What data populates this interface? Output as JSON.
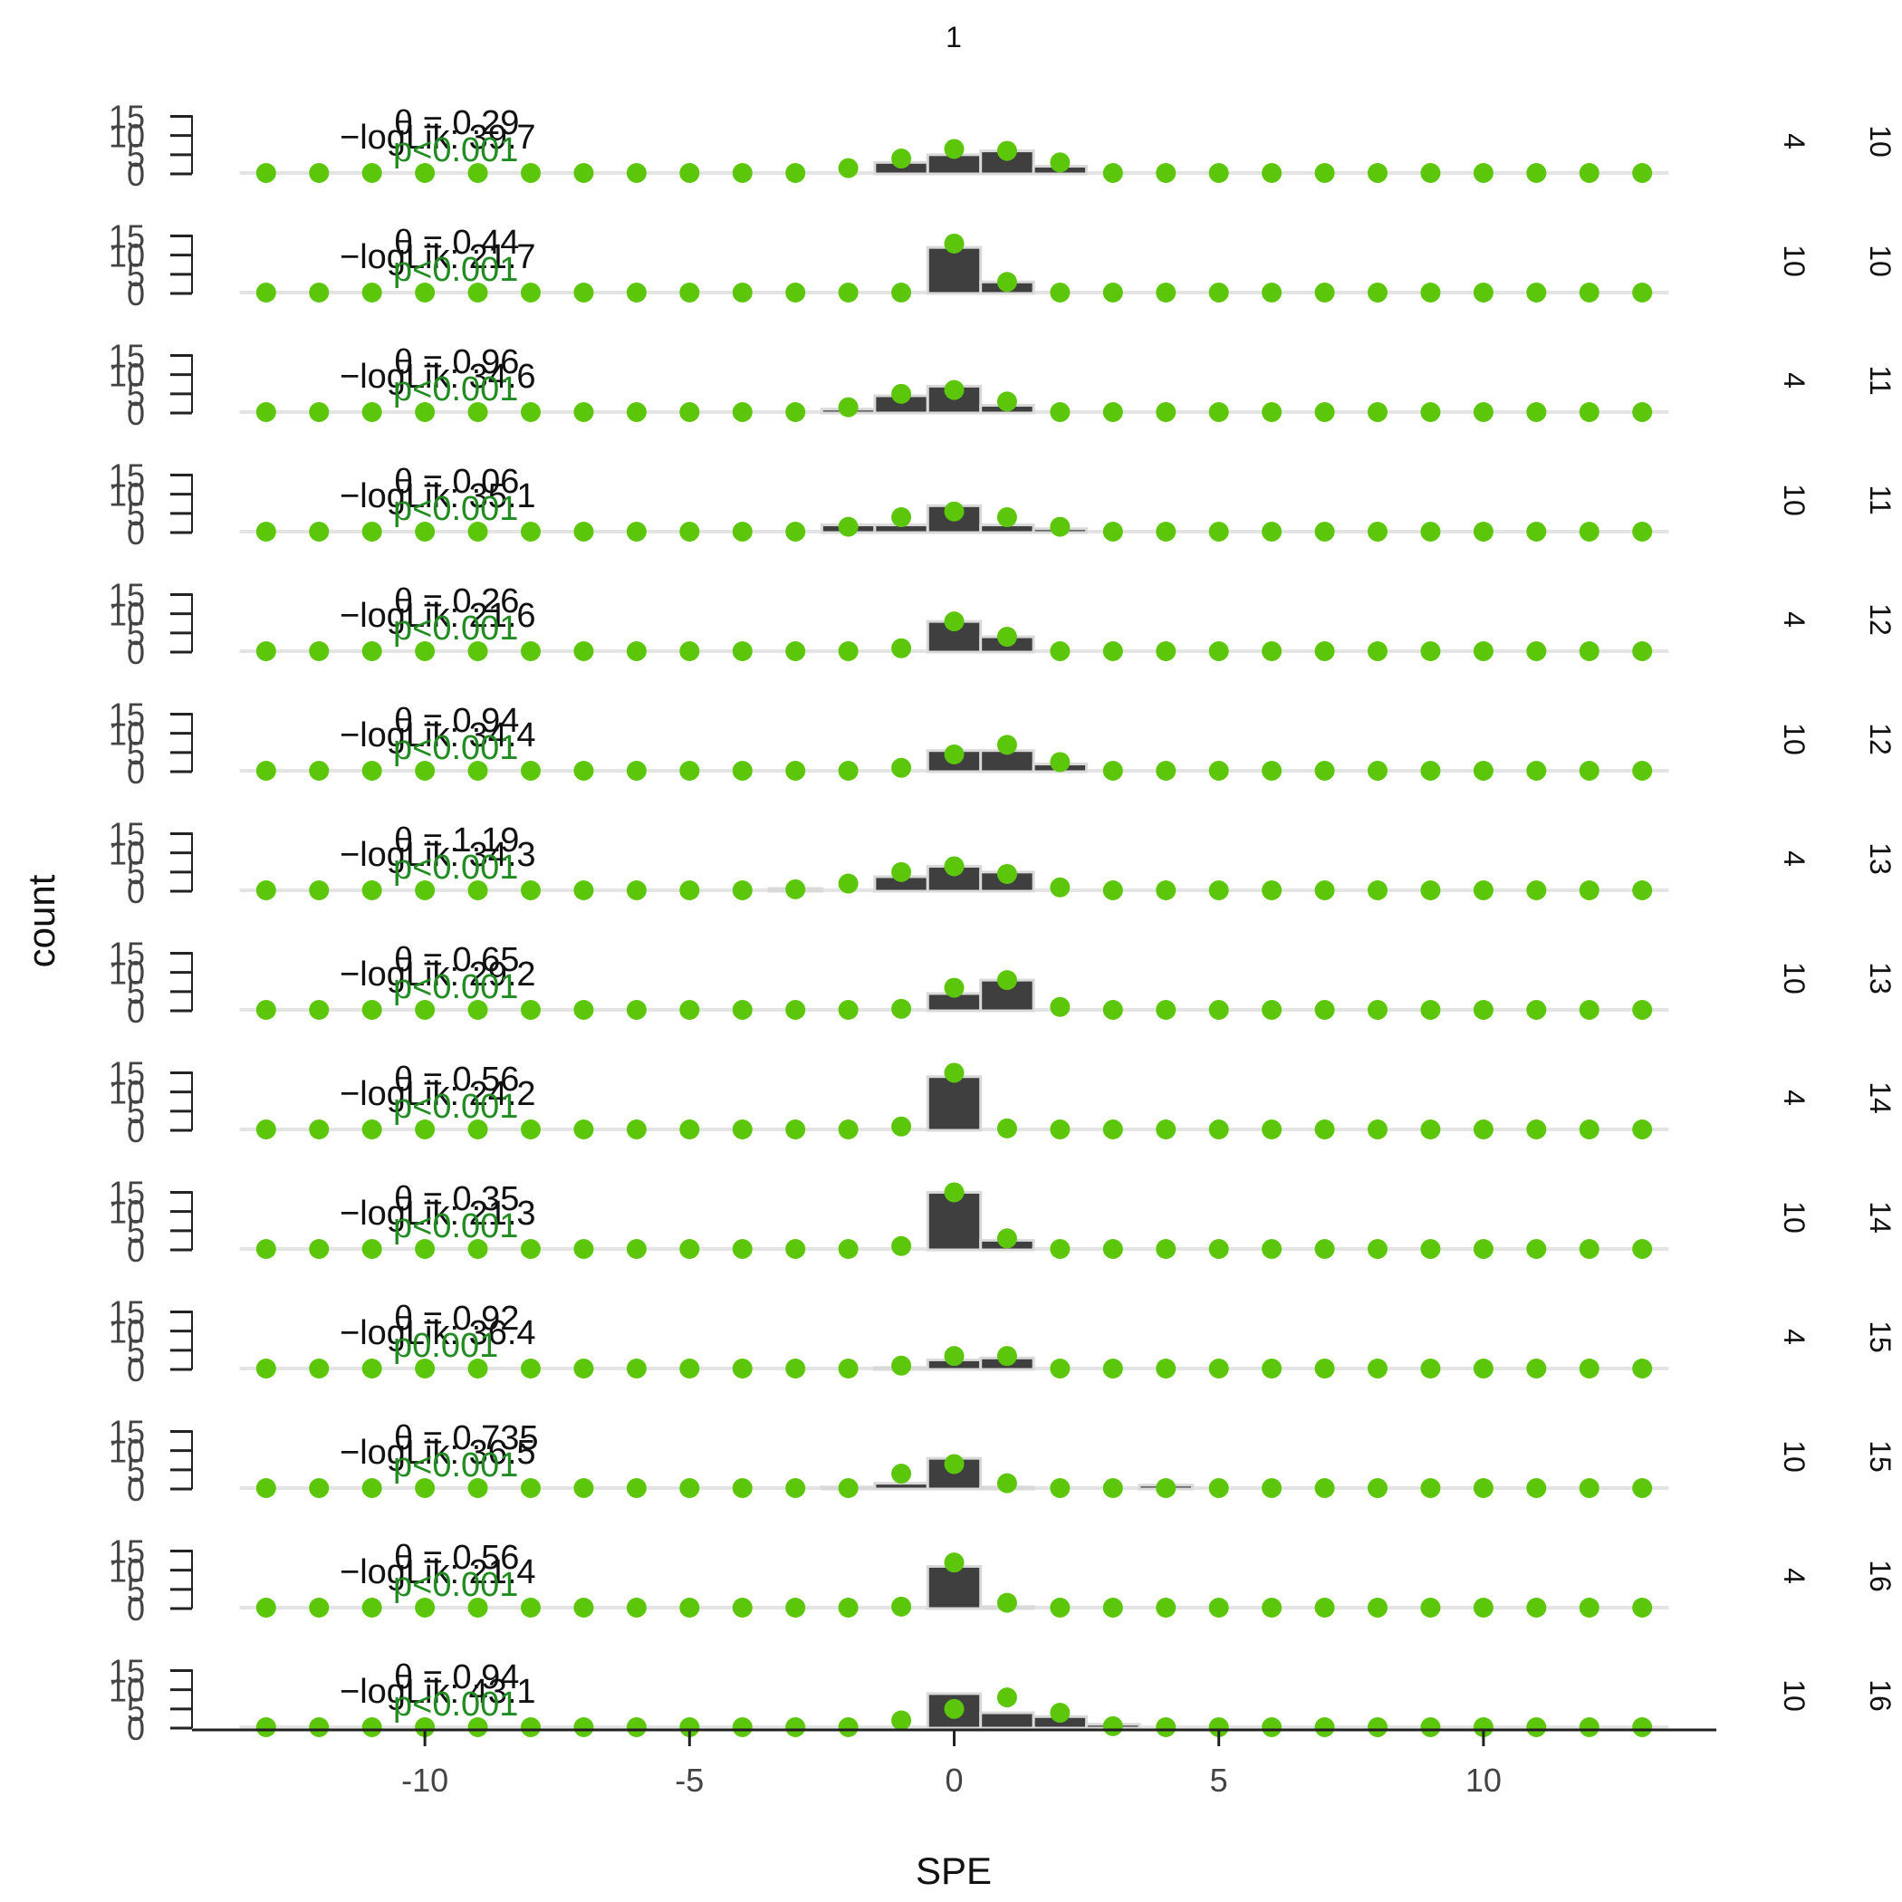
{
  "chart_data": {
    "type": "bar",
    "top_strip": "1",
    "xlabel": "SPE",
    "ylabel": "count",
    "x_ticks": [
      -10,
      -5,
      0,
      5,
      10
    ],
    "xlim": [
      -14.4,
      14.4
    ],
    "y_ticks": [
      0,
      5,
      10,
      15
    ],
    "ylim": [
      0,
      17
    ],
    "x_points": [
      -13,
      -12,
      -11,
      -10,
      -9,
      -8,
      -7,
      -6,
      -5,
      -4,
      -3,
      -2,
      -1,
      0,
      1,
      2,
      3,
      4,
      5,
      6,
      7,
      8,
      9,
      10,
      11,
      12,
      13
    ],
    "colors": {
      "observed_bar": "#3f3f3f",
      "bar_outline": "#d9d9d9",
      "expected_point": "#5cc70a",
      "pvalue_text": "#228b22",
      "axis": "#222222"
    },
    "panels": [
      {
        "row_label": "4",
        "col_label": "10",
        "theta": "θ = 0.29",
        "loglik": "−logLik: 39.7",
        "pval": "p<0.001",
        "bars": [
          [
            -1,
            3
          ],
          [
            0,
            5
          ],
          [
            1,
            6
          ],
          [
            2,
            2
          ]
        ],
        "expected": [
          [
            -2,
            1.5
          ],
          [
            -1,
            4
          ],
          [
            0,
            6.5
          ],
          [
            1,
            6
          ],
          [
            2,
            3
          ]
        ]
      },
      {
        "row_label": "10",
        "col_label": "10",
        "theta": "θ = 0.44",
        "loglik": "−logLik: 21.7",
        "pval": "p<0.001",
        "bars": [
          [
            0,
            12
          ],
          [
            1,
            3
          ]
        ],
        "expected": [
          [
            0,
            13
          ],
          [
            1,
            3
          ]
        ]
      },
      {
        "row_label": "4",
        "col_label": "11",
        "theta": "θ = 0.96",
        "loglik": "−logLik: 34.6",
        "pval": "p<0.001",
        "bars": [
          [
            -2,
            1
          ],
          [
            -1,
            4.5
          ],
          [
            0,
            7
          ],
          [
            1,
            2
          ]
        ],
        "expected": [
          [
            -2,
            1.5
          ],
          [
            -1,
            5
          ],
          [
            0,
            6
          ],
          [
            1,
            3
          ]
        ]
      },
      {
        "row_label": "10",
        "col_label": "11",
        "theta": "θ = 0.06",
        "loglik": "−logLik: 35.1",
        "pval": "p<0.001",
        "bars": [
          [
            -2,
            2
          ],
          [
            -1,
            2
          ],
          [
            0,
            7
          ],
          [
            1,
            2
          ],
          [
            2,
            1
          ]
        ],
        "expected": [
          [
            -2,
            1.5
          ],
          [
            -1,
            4
          ],
          [
            0,
            5.5
          ],
          [
            1,
            4
          ],
          [
            2,
            1.5
          ]
        ]
      },
      {
        "row_label": "4",
        "col_label": "12",
        "theta": "θ = 0.26",
        "loglik": "−logLik: 21.6",
        "pval": "p<0.001",
        "bars": [
          [
            0,
            8
          ],
          [
            1,
            4
          ]
        ],
        "expected": [
          [
            -1,
            1
          ],
          [
            0,
            8
          ],
          [
            1,
            4
          ]
        ]
      },
      {
        "row_label": "10",
        "col_label": "12",
        "theta": "θ = 0.94",
        "loglik": "−logLik: 34.4",
        "pval": "p<0.001",
        "bars": [
          [
            0,
            5.5
          ],
          [
            1,
            5.5
          ],
          [
            2,
            2
          ]
        ],
        "expected": [
          [
            -1,
            1
          ],
          [
            0,
            4.5
          ],
          [
            1,
            7
          ],
          [
            2,
            2.5
          ]
        ]
      },
      {
        "row_label": "4",
        "col_label": "13",
        "theta": "θ = 1.19",
        "loglik": "−logLik: 34.3",
        "pval": "p<0.001",
        "bars": [
          [
            -3,
            0.7
          ],
          [
            -1,
            3.8
          ],
          [
            0,
            6.5
          ],
          [
            1,
            5
          ]
        ],
        "expected": [
          [
            -3,
            0.5
          ],
          [
            -2,
            2
          ],
          [
            -1,
            5
          ],
          [
            0,
            6.5
          ],
          [
            1,
            4.5
          ],
          [
            2,
            1
          ]
        ]
      },
      {
        "row_label": "10",
        "col_label": "13",
        "theta": "θ = 0.65",
        "loglik": "−logLik: 29.2",
        "pval": "p<0.001",
        "bars": [
          [
            0,
            4.5
          ],
          [
            1,
            8
          ]
        ],
        "expected": [
          [
            -1,
            0.5
          ],
          [
            0,
            6
          ],
          [
            1,
            8
          ],
          [
            2,
            1
          ]
        ]
      },
      {
        "row_label": "4",
        "col_label": "14",
        "theta": "θ = 0.56",
        "loglik": "−logLik: 24.2",
        "pval": "p<0.001",
        "bars": [
          [
            0,
            14
          ]
        ],
        "expected": [
          [
            -1,
            1
          ],
          [
            0,
            15
          ],
          [
            1,
            0.5
          ]
        ]
      },
      {
        "row_label": "10",
        "col_label": "14",
        "theta": "θ = 0.35",
        "loglik": "−logLik: 21.3",
        "pval": "p<0.001",
        "bars": [
          [
            0,
            15
          ],
          [
            1,
            2.5
          ]
        ],
        "expected": [
          [
            -1,
            1
          ],
          [
            0,
            15
          ],
          [
            1,
            3
          ]
        ]
      },
      {
        "row_label": "4",
        "col_label": "15",
        "theta": "θ = 0.92",
        "loglik": "−logLik: 36.4",
        "pval": "p0.001",
        "bars": [
          [
            -1,
            0.5
          ],
          [
            0,
            2.5
          ],
          [
            1,
            3
          ]
        ],
        "expected": [
          [
            -1,
            1
          ],
          [
            0,
            3.5
          ],
          [
            1,
            3.5
          ]
        ]
      },
      {
        "row_label": "10",
        "col_label": "15",
        "theta": "θ = 0.735",
        "loglik": "−logLik: 36.5",
        "pval": "p<0.001",
        "bars": [
          [
            -2,
            0.5
          ],
          [
            -1,
            1.5
          ],
          [
            0,
            8
          ],
          [
            1,
            0.5
          ],
          [
            4,
            1
          ]
        ],
        "expected": [
          [
            -1,
            4
          ],
          [
            0,
            6.5
          ],
          [
            1,
            1.5
          ]
        ]
      },
      {
        "row_label": "4",
        "col_label": "16",
        "theta": "θ = 0.56",
        "loglik": "−logLik: 21.4",
        "pval": "p<0.001",
        "bars": [
          [
            0,
            11
          ],
          [
            1,
            0.5
          ]
        ],
        "expected": [
          [
            -1,
            0.5
          ],
          [
            0,
            12
          ],
          [
            1,
            1.5
          ]
        ]
      },
      {
        "row_label": "10",
        "col_label": "16",
        "theta": "θ = 0.94",
        "loglik": "−logLik: 43.1",
        "pval": "p<0.001",
        "bars": [
          [
            0,
            9
          ],
          [
            1,
            4
          ],
          [
            2,
            3
          ],
          [
            3,
            1
          ]
        ],
        "expected": [
          [
            -1,
            2
          ],
          [
            0,
            5
          ],
          [
            1,
            8
          ],
          [
            2,
            4
          ],
          [
            3,
            0.5
          ]
        ]
      }
    ]
  }
}
